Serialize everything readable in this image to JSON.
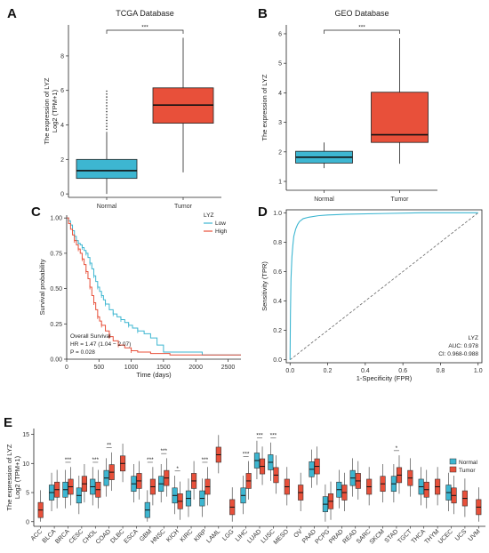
{
  "panels": {
    "A": "A",
    "B": "B",
    "C": "C",
    "D": "D",
    "E": "E"
  },
  "chart_data": [
    {
      "id": "A",
      "type": "box",
      "title": "TCGA Database",
      "ylabel_line1": "The expression of LYZ",
      "ylabel_line2": "Log2 (TPM+1)",
      "ylim": [
        -0.2,
        9.8
      ],
      "yticks": [
        0,
        2,
        4,
        6,
        8
      ],
      "categories": [
        "Normal",
        "Tumor"
      ],
      "colors": [
        "#3db6d1",
        "#e8503a"
      ],
      "boxes": [
        {
          "min": 0.0,
          "q1": 0.9,
          "median": 1.35,
          "q3": 2.0,
          "max": 3.6
        },
        {
          "min": 1.25,
          "q1": 4.1,
          "median": 5.15,
          "q3": 6.15,
          "max": 9.05
        }
      ],
      "significance": "***"
    },
    {
      "id": "B",
      "type": "box",
      "title": "GEO Database",
      "ylabel_line1": "The expression of LYZ",
      "ylabel_line2": "",
      "ylim": [
        0.7,
        6.3
      ],
      "yticks": [
        1,
        2,
        3,
        4,
        5,
        6
      ],
      "categories": [
        "Normal",
        "Tumor"
      ],
      "colors": [
        "#3db6d1",
        "#e8503a"
      ],
      "boxes": [
        {
          "min": 1.45,
          "q1": 1.62,
          "median": 1.82,
          "q3": 2.02,
          "max": 2.32
        },
        {
          "min": 1.6,
          "q1": 2.32,
          "median": 2.58,
          "q3": 4.02,
          "max": 5.85
        }
      ],
      "significance": "***"
    },
    {
      "id": "C",
      "type": "line",
      "xlabel": "Time (days)",
      "ylabel": "Survival probability",
      "xlim": [
        0,
        2700
      ],
      "ylim": [
        0,
        1.02
      ],
      "xticks": [
        0,
        500,
        1000,
        1500,
        2000,
        2500
      ],
      "yticks": [
        0.0,
        0.25,
        0.5,
        0.75,
        1.0
      ],
      "ytick_labels": [
        "0.00",
        "0.25",
        "0.50",
        "0.75",
        "1.00"
      ],
      "legend_title": "LYZ",
      "series": [
        {
          "name": "Low",
          "color": "#3db6d1",
          "x": [
            0,
            30,
            60,
            90,
            120,
            150,
            180,
            210,
            240,
            270,
            300,
            330,
            360,
            390,
            420,
            450,
            480,
            510,
            540,
            570,
            600,
            660,
            720,
            780,
            840,
            900,
            960,
            1020,
            1100,
            1200,
            1300,
            1400,
            1500,
            2100,
            2700
          ],
          "y": [
            1.0,
            0.98,
            0.95,
            0.91,
            0.87,
            0.84,
            0.82,
            0.81,
            0.79,
            0.77,
            0.75,
            0.72,
            0.68,
            0.64,
            0.59,
            0.55,
            0.51,
            0.48,
            0.45,
            0.42,
            0.39,
            0.35,
            0.32,
            0.3,
            0.28,
            0.26,
            0.24,
            0.22,
            0.2,
            0.18,
            0.15,
            0.1,
            0.05,
            0.03,
            0.03
          ]
        },
        {
          "name": "High",
          "color": "#e8503a",
          "x": [
            0,
            30,
            60,
            90,
            120,
            150,
            180,
            210,
            240,
            270,
            300,
            330,
            360,
            390,
            420,
            450,
            480,
            510,
            540,
            600,
            660,
            720,
            800,
            900,
            1000,
            1100,
            1300,
            1600,
            2700
          ],
          "y": [
            1.0,
            0.96,
            0.92,
            0.88,
            0.84,
            0.81,
            0.78,
            0.75,
            0.71,
            0.67,
            0.62,
            0.57,
            0.51,
            0.45,
            0.4,
            0.35,
            0.3,
            0.27,
            0.24,
            0.2,
            0.16,
            0.13,
            0.1,
            0.08,
            0.06,
            0.05,
            0.04,
            0.03,
            0.03
          ]
        }
      ],
      "annotation": [
        "Overall Survival",
        "HR = 1.47 (1.04 − 2.07)",
        "P = 0.028"
      ]
    },
    {
      "id": "D",
      "type": "line",
      "xlabel": "1-Specificity (FPR)",
      "ylabel": "Sensitivity (TPR)",
      "xlim": [
        -0.02,
        1.02
      ],
      "ylim": [
        -0.02,
        1.02
      ],
      "xticks": [
        0.0,
        0.2,
        0.4,
        0.6,
        0.8,
        1.0
      ],
      "yticks": [
        0.0,
        0.2,
        0.4,
        0.6,
        0.8,
        1.0
      ],
      "series": [
        {
          "name": "LYZ",
          "color": "#3db6d1",
          "x": [
            0,
            0.002,
            0.005,
            0.01,
            0.015,
            0.02,
            0.03,
            0.04,
            0.05,
            0.07,
            0.1,
            0.15,
            0.2,
            0.3,
            0.5,
            0.7,
            1.0
          ],
          "y": [
            0,
            0.3,
            0.55,
            0.7,
            0.78,
            0.84,
            0.89,
            0.92,
            0.94,
            0.96,
            0.97,
            0.98,
            0.985,
            0.99,
            0.995,
            1.0,
            1.0
          ]
        }
      ],
      "legend": [
        "LYZ",
        "AUC: 0.978",
        "CI: 0.968-0.988"
      ]
    },
    {
      "id": "E",
      "type": "box",
      "ylabel_line1": "The expression of LYZ",
      "ylabel_line2": "Log2 (TPM+1)",
      "ylim": [
        -0.8,
        16
      ],
      "yticks": [
        0,
        5,
        10,
        15
      ],
      "legend": [
        "Normal",
        "Tumor"
      ],
      "colors": [
        "#3db6d1",
        "#e8503a"
      ],
      "categories": [
        "ACC",
        "BLCA",
        "BRCA",
        "CESC",
        "CHOL",
        "COAD",
        "DLBC",
        "ESCA",
        "GBM",
        "HNSC",
        "KICH",
        "KIRC",
        "KIRP",
        "LAML",
        "LGG",
        "LIHC",
        "LUAD",
        "LUSC",
        "MESO",
        "OV",
        "PAAD",
        "PCPG",
        "PRAD",
        "READ",
        "SARC",
        "SKCM",
        "STAD",
        "TGCT",
        "THCA",
        "THYM",
        "UCEC",
        "UCS",
        "UVM"
      ],
      "normal_medians": [
        null,
        5.0,
        5.5,
        4.5,
        6.0,
        7.5,
        null,
        6.5,
        2.0,
        6.5,
        4.5,
        4.0,
        4.0,
        null,
        null,
        4.5,
        10.5,
        10.2,
        null,
        null,
        9.0,
        3.0,
        5.5,
        7.5,
        null,
        null,
        6.5,
        null,
        6.0,
        null,
        5.0,
        null,
        null
      ],
      "tumor_medians": [
        2.0,
        5.5,
        6.0,
        6.5,
        5.5,
        8.5,
        10.0,
        7.0,
        6.0,
        7.5,
        3.5,
        7.0,
        6.0,
        11.5,
        2.5,
        7.0,
        9.5,
        8.0,
        6.0,
        5.0,
        9.5,
        3.5,
        5.0,
        7.0,
        6.0,
        6.5,
        8.0,
        7.5,
        5.5,
        6.0,
        4.5,
        4.0,
        2.5
      ],
      "significance": [
        {
          "cat": "BRCA",
          "label": "***"
        },
        {
          "cat": "CHOL",
          "label": "***"
        },
        {
          "cat": "COAD",
          "label": "**"
        },
        {
          "cat": "HNSC",
          "label": "***"
        },
        {
          "cat": "KICH",
          "label": "*"
        },
        {
          "cat": "KIRP",
          "label": "***"
        },
        {
          "cat": "LIHC",
          "label": "***"
        },
        {
          "cat": "LUAD",
          "label": "***"
        },
        {
          "cat": "LUSC",
          "label": "***"
        },
        {
          "cat": "GBM",
          "label": "***"
        },
        {
          "cat": "STAD",
          "label": "*"
        }
      ]
    }
  ]
}
